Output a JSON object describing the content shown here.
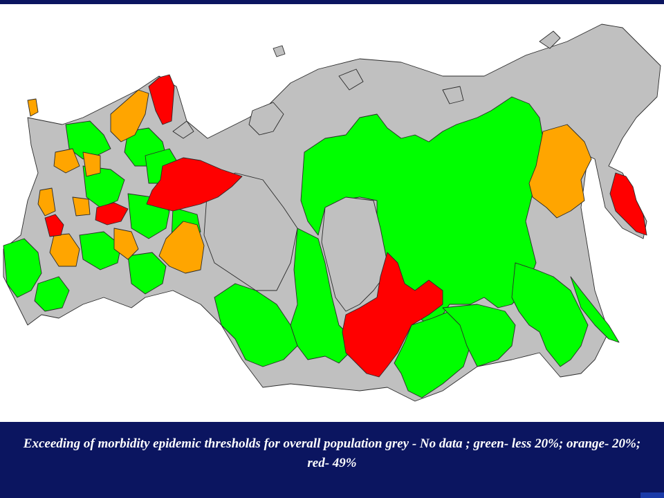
{
  "caption": "Exceeding of morbidity epidemic thresholds for overall population grey - No data ; green- less 20%; orange- 20%; red- 49%",
  "legend_colors": {
    "no_data": "#c0c0c0",
    "less_20": "#00ff00",
    "20": "#ffa500",
    "49": "#ff0000"
  },
  "slide_background": "#0b1560"
}
